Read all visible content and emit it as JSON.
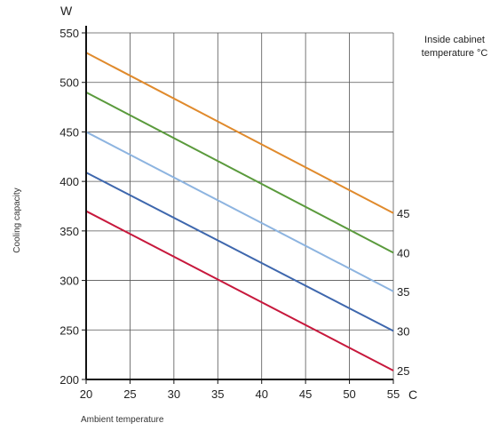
{
  "chart_data": {
    "type": "line",
    "y_unit": "W",
    "x_unit": "C",
    "ylabel": "Cooling capacity",
    "xlabel": "Ambient temperature",
    "legend_title_lines": [
      "Inside cabinet",
      "temperature °C"
    ],
    "xlim": [
      20,
      55
    ],
    "ylim": [
      200,
      550
    ],
    "x_ticks": [
      20,
      25,
      30,
      35,
      40,
      45,
      50,
      55
    ],
    "y_ticks": [
      200,
      250,
      300,
      350,
      400,
      450,
      500,
      550
    ],
    "grid": true,
    "series": [
      {
        "name": "45",
        "color": "#e08a2c",
        "x": [
          20,
          55
        ],
        "y": [
          530,
          368
        ]
      },
      {
        "name": "40",
        "color": "#5a9a3c",
        "x": [
          20,
          55
        ],
        "y": [
          490,
          328
        ]
      },
      {
        "name": "35",
        "color": "#8db4e0",
        "x": [
          20,
          55
        ],
        "y": [
          450,
          289
        ]
      },
      {
        "name": "30",
        "color": "#3e67ad",
        "x": [
          20,
          55
        ],
        "y": [
          409,
          249
        ]
      },
      {
        "name": "25",
        "color": "#c7183c",
        "x": [
          20,
          55
        ],
        "y": [
          370,
          209
        ]
      }
    ]
  }
}
